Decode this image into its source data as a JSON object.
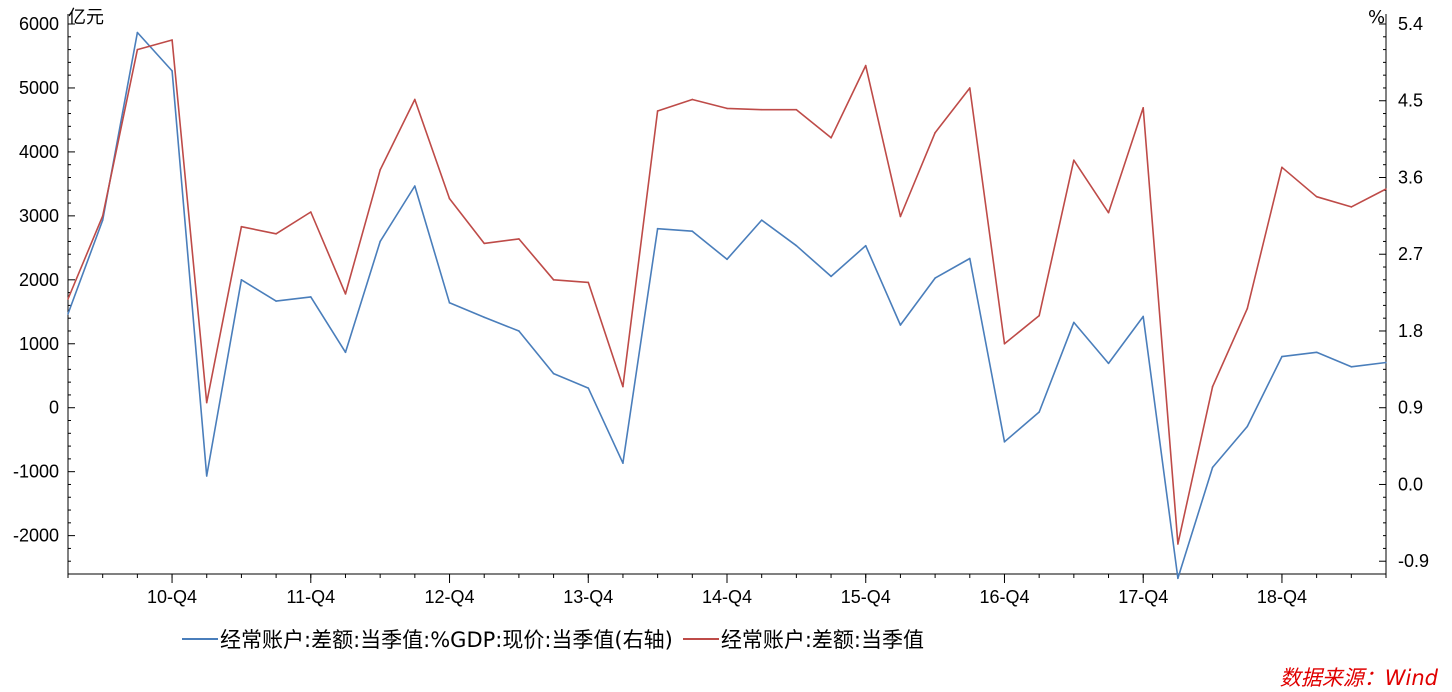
{
  "chart_data": {
    "type": "line",
    "left_axis": {
      "unit": "亿元",
      "ylim": [
        -2600,
        6000
      ],
      "ticks": [
        6000,
        5000,
        4000,
        3000,
        2000,
        1000,
        0,
        -1000,
        -2000
      ]
    },
    "right_axis": {
      "unit": "%",
      "ylim": [
        -1.05,
        5.4
      ],
      "ticks": [
        "5.4",
        "4.5",
        "3.6",
        "2.7",
        "1.8",
        "0.9",
        "0.0",
        "-0.9"
      ]
    },
    "x_tick_labels": [
      "10-Q4",
      "11-Q4",
      "12-Q4",
      "13-Q4",
      "14-Q4",
      "15-Q4",
      "16-Q4",
      "17-Q4",
      "18-Q4"
    ],
    "x_tick_label_index": [
      3,
      7,
      11,
      15,
      19,
      23,
      27,
      31,
      35
    ],
    "x": [
      "10-Q1",
      "10-Q2",
      "10-Q3",
      "10-Q4",
      "11-Q1",
      "11-Q2",
      "11-Q3",
      "11-Q4",
      "12-Q1",
      "12-Q2",
      "12-Q3",
      "12-Q4",
      "13-Q1",
      "13-Q2",
      "13-Q3",
      "13-Q4",
      "14-Q1",
      "14-Q2",
      "14-Q3",
      "14-Q4",
      "15-Q1",
      "15-Q2",
      "15-Q3",
      "15-Q4",
      "16-Q1",
      "16-Q2",
      "16-Q3",
      "16-Q4",
      "17-Q1",
      "17-Q2",
      "17-Q3",
      "17-Q4",
      "18-Q1",
      "18-Q2",
      "18-Q3",
      "18-Q4",
      "19-Q1",
      "19-Q2",
      "19-Q3"
    ],
    "series": [
      {
        "name": "经常账户:差额:当季值:%GDP:现价:当季值(右轴)",
        "axis": "right",
        "color": "#4a7ebb",
        "values": [
          2.0,
          3.1,
          5.3,
          4.85,
          0.1,
          2.4,
          2.15,
          2.2,
          1.55,
          2.85,
          3.5,
          2.13,
          1.96,
          1.8,
          1.3,
          1.13,
          0.25,
          3.0,
          2.97,
          2.64,
          3.1,
          2.8,
          2.44,
          2.8,
          1.87,
          2.42,
          2.65,
          0.5,
          0.85,
          1.9,
          1.42,
          1.97,
          -1.1,
          0.2,
          0.68,
          1.5,
          1.55,
          1.38,
          1.43
        ]
      },
      {
        "name": "经常账户:差额:当季值",
        "axis": "left",
        "color": "#be4b48",
        "values": [
          1700,
          3000,
          5600,
          5750,
          80,
          2830,
          2720,
          3060,
          1780,
          3720,
          4820,
          3270,
          2570,
          2640,
          2000,
          1960,
          330,
          4640,
          4820,
          4680,
          4660,
          4660,
          4220,
          5350,
          2990,
          4300,
          5000,
          1000,
          1440,
          3870,
          3050,
          4690,
          -2130,
          330,
          1550,
          3760,
          3300,
          3140,
          3420
        ]
      }
    ],
    "source": "数据来源：Wind"
  }
}
